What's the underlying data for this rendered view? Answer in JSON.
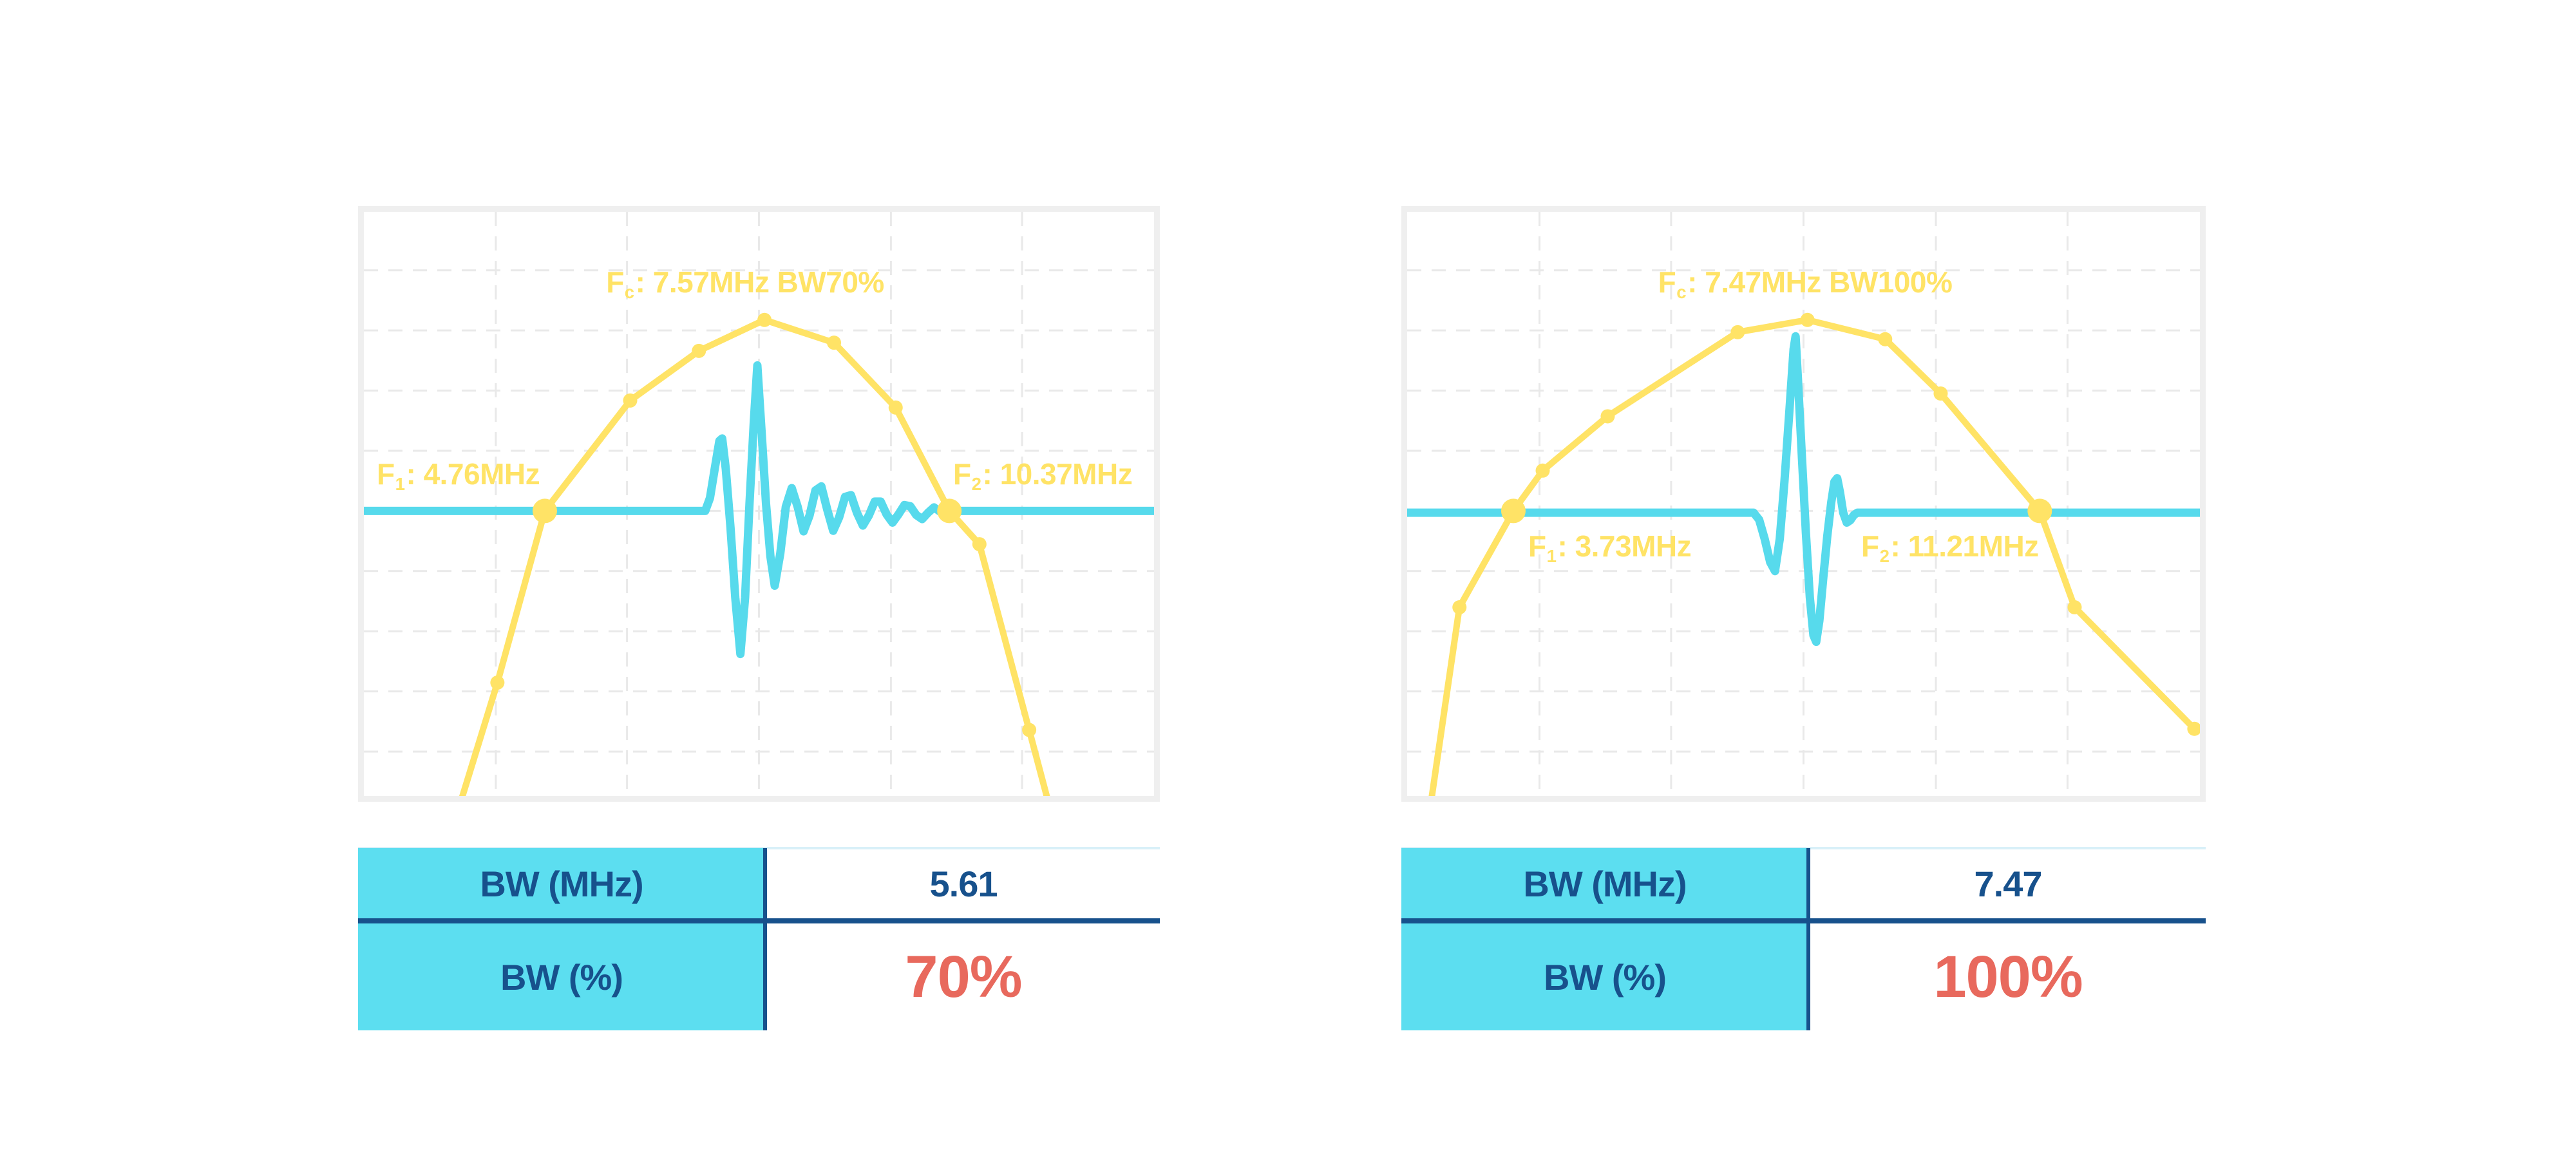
{
  "page": {
    "background": "#FFFFFF"
  },
  "colors": {
    "spectrum_yellow": "#FFE366",
    "pulse_cyan": "#57DAEC",
    "table_fill_cyan": "#5CDEF0",
    "navy": "#17518C",
    "accent_red": "#E8695D",
    "frame_gray": "#EFEFEF",
    "grid_gray": "#E9E9E9",
    "table_topline": "#D8F0F8"
  },
  "chart_data": [
    {
      "type": "line",
      "panel": "left",
      "title": "Fc: 7.57MHz BW70%",
      "center_frequency_mhz": 7.57,
      "bandwidth_pct": 70,
      "f1_mhz": 4.76,
      "f2_mhz": 10.37,
      "bw_mhz": 5.61,
      "legend": "none",
      "labels": {
        "fc": {
          "pre": "F",
          "sub": "c",
          "post": ": 7.57MHz BW70%"
        },
        "f1": {
          "pre": "F",
          "sub": "1",
          "post": ": 4.76MHz"
        },
        "f2": {
          "pre": "F",
          "sub": "2",
          "post": ": 10.37MHz"
        }
      },
      "grid": {
        "vlines": [
          0.167,
          0.333,
          0.5,
          0.667,
          0.833
        ],
        "hlines": [
          0.1,
          0.203,
          0.306,
          0.409,
          0.512,
          0.615,
          0.718,
          0.821,
          0.924
        ]
      },
      "spectrum": {
        "name": "frequency-spectrum-curve",
        "color": "#FFE366",
        "points": [
          [
            0.118,
            1.03
          ],
          [
            0.169,
            0.806
          ],
          [
            0.229,
            0.512
          ],
          [
            0.337,
            0.323
          ],
          [
            0.424,
            0.238
          ],
          [
            0.507,
            0.185
          ],
          [
            0.595,
            0.224
          ],
          [
            0.673,
            0.335
          ],
          [
            0.741,
            0.512
          ],
          [
            0.779,
            0.569
          ],
          [
            0.842,
            0.887
          ],
          [
            0.87,
            1.03
          ]
        ],
        "markers": [
          {
            "x": 0.169,
            "y": 0.806,
            "size": "small"
          },
          {
            "x": 0.229,
            "y": 0.512,
            "size": "big"
          },
          {
            "x": 0.337,
            "y": 0.323,
            "size": "small"
          },
          {
            "x": 0.424,
            "y": 0.238,
            "size": "small"
          },
          {
            "x": 0.507,
            "y": 0.185,
            "size": "small"
          },
          {
            "x": 0.595,
            "y": 0.224,
            "size": "small"
          },
          {
            "x": 0.673,
            "y": 0.335,
            "size": "small"
          },
          {
            "x": 0.741,
            "y": 0.512,
            "size": "big"
          },
          {
            "x": 0.779,
            "y": 0.569,
            "size": "small"
          },
          {
            "x": 0.842,
            "y": 0.887,
            "size": "small"
          }
        ]
      },
      "pulse": {
        "name": "pulse-echo-waveform",
        "color": "#57DAEC",
        "baseline": 0.512,
        "points": [
          [
            0,
            0.512
          ],
          [
            0.432,
            0.512
          ],
          [
            0.438,
            0.49
          ],
          [
            0.444,
            0.44
          ],
          [
            0.45,
            0.392
          ],
          [
            0.4535,
            0.388
          ],
          [
            0.458,
            0.44
          ],
          [
            0.464,
            0.54
          ],
          [
            0.47,
            0.66
          ],
          [
            0.4765,
            0.757
          ],
          [
            0.4825,
            0.66
          ],
          [
            0.488,
            0.5
          ],
          [
            0.4935,
            0.36
          ],
          [
            0.498,
            0.263
          ],
          [
            0.5035,
            0.38
          ],
          [
            0.509,
            0.5
          ],
          [
            0.5145,
            0.59
          ],
          [
            0.52,
            0.64
          ],
          [
            0.527,
            0.585
          ],
          [
            0.534,
            0.505
          ],
          [
            0.5415,
            0.473
          ],
          [
            0.549,
            0.505
          ],
          [
            0.5565,
            0.547
          ],
          [
            0.564,
            0.52
          ],
          [
            0.5715,
            0.477
          ],
          [
            0.579,
            0.47
          ],
          [
            0.5865,
            0.51
          ],
          [
            0.594,
            0.546
          ],
          [
            0.6015,
            0.523
          ],
          [
            0.609,
            0.488
          ],
          [
            0.6165,
            0.485
          ],
          [
            0.624,
            0.515
          ],
          [
            0.6315,
            0.537
          ],
          [
            0.639,
            0.52
          ],
          [
            0.6465,
            0.496
          ],
          [
            0.654,
            0.496
          ],
          [
            0.6615,
            0.518
          ],
          [
            0.669,
            0.532
          ],
          [
            0.6765,
            0.518
          ],
          [
            0.684,
            0.502
          ],
          [
            0.6915,
            0.504
          ],
          [
            0.699,
            0.519
          ],
          [
            0.7065,
            0.526
          ],
          [
            0.714,
            0.515
          ],
          [
            0.7215,
            0.506
          ],
          [
            0.729,
            0.513
          ],
          [
            0.7365,
            0.516
          ],
          [
            0.741,
            0.512
          ],
          [
            1,
            0.512
          ]
        ]
      },
      "table": {
        "rows": [
          {
            "label": "BW (MHz)",
            "value": "5.61"
          },
          {
            "label": "BW (%)",
            "value": "70%"
          }
        ]
      }
    },
    {
      "type": "line",
      "panel": "right",
      "title": "Fc: 7.47MHz BW100%",
      "center_frequency_mhz": 7.47,
      "bandwidth_pct": 100,
      "f1_mhz": 3.73,
      "f2_mhz": 11.21,
      "bw_mhz": 7.47,
      "legend": "none",
      "labels": {
        "fc": {
          "pre": "F",
          "sub": "c",
          "post": ": 7.47MHz BW100%"
        },
        "f1": {
          "pre": "F",
          "sub": "1",
          "post": ": 3.73MHz"
        },
        "f2": {
          "pre": "F",
          "sub": "2",
          "post": ": 11.21MHz"
        }
      },
      "grid": {
        "vlines": [
          0.167,
          0.333,
          0.5,
          0.667,
          0.833
        ],
        "hlines": [
          0.1,
          0.203,
          0.306,
          0.409,
          0.512,
          0.615,
          0.718,
          0.821,
          0.924
        ]
      },
      "spectrum": {
        "name": "frequency-spectrum-curve",
        "color": "#FFE366",
        "points": [
          [
            0.028,
            1.03
          ],
          [
            0.066,
            0.677
          ],
          [
            0.134,
            0.512
          ],
          [
            0.171,
            0.443
          ],
          [
            0.253,
            0.35
          ],
          [
            0.417,
            0.206
          ],
          [
            0.505,
            0.185
          ],
          [
            0.603,
            0.218
          ],
          [
            0.673,
            0.311
          ],
          [
            0.798,
            0.512
          ],
          [
            0.842,
            0.677
          ],
          [
            0.993,
            0.885
          ]
        ],
        "markers": [
          {
            "x": 0.066,
            "y": 0.677,
            "size": "small"
          },
          {
            "x": 0.134,
            "y": 0.512,
            "size": "big"
          },
          {
            "x": 0.171,
            "y": 0.443,
            "size": "small"
          },
          {
            "x": 0.253,
            "y": 0.35,
            "size": "small"
          },
          {
            "x": 0.417,
            "y": 0.206,
            "size": "small"
          },
          {
            "x": 0.505,
            "y": 0.185,
            "size": "small"
          },
          {
            "x": 0.603,
            "y": 0.218,
            "size": "small"
          },
          {
            "x": 0.673,
            "y": 0.311,
            "size": "small"
          },
          {
            "x": 0.798,
            "y": 0.512,
            "size": "big"
          },
          {
            "x": 0.842,
            "y": 0.677,
            "size": "small"
          },
          {
            "x": 0.993,
            "y": 0.885,
            "size": "small"
          }
        ]
      },
      "pulse": {
        "name": "pulse-echo-waveform",
        "color": "#57DAEC",
        "baseline": 0.515,
        "points": [
          [
            0,
            0.515
          ],
          [
            0.437,
            0.515
          ],
          [
            0.444,
            0.527
          ],
          [
            0.451,
            0.56
          ],
          [
            0.458,
            0.6
          ],
          [
            0.464,
            0.615
          ],
          [
            0.47,
            0.56
          ],
          [
            0.476,
            0.46
          ],
          [
            0.482,
            0.345
          ],
          [
            0.4875,
            0.235
          ],
          [
            0.49,
            0.213
          ],
          [
            0.4935,
            0.3
          ],
          [
            0.498,
            0.42
          ],
          [
            0.503,
            0.55
          ],
          [
            0.508,
            0.66
          ],
          [
            0.5125,
            0.725
          ],
          [
            0.516,
            0.736
          ],
          [
            0.52,
            0.7
          ],
          [
            0.525,
            0.625
          ],
          [
            0.53,
            0.555
          ],
          [
            0.535,
            0.497
          ],
          [
            0.539,
            0.462
          ],
          [
            0.5425,
            0.456
          ],
          [
            0.546,
            0.48
          ],
          [
            0.55,
            0.515
          ],
          [
            0.5545,
            0.532
          ],
          [
            0.559,
            0.528
          ],
          [
            0.5635,
            0.519
          ],
          [
            0.568,
            0.515
          ],
          [
            1,
            0.515
          ]
        ]
      },
      "table": {
        "rows": [
          {
            "label": "BW (MHz)",
            "value": "7.47"
          },
          {
            "label": "BW (%)",
            "value": "100%"
          }
        ]
      }
    }
  ]
}
